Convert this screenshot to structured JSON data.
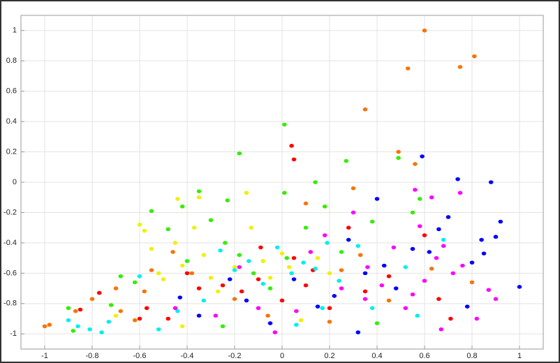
{
  "chart_data": {
    "type": "scatter",
    "xlim": [
      -1.1,
      1.1
    ],
    "ylim": [
      -1.1,
      1.1
    ],
    "xticks": [
      -1,
      -0.8,
      -0.6,
      -0.4,
      -0.2,
      0,
      0.2,
      0.4,
      0.6,
      0.8,
      1
    ],
    "yticks": [
      -1,
      -0.8,
      -0.6,
      -0.4,
      -0.2,
      0,
      0.2,
      0.4,
      0.6,
      0.8,
      1
    ],
    "grid": true,
    "series": [
      {
        "color": "#f97306",
        "x": [
          0.6,
          0.81,
          0.75,
          0.53,
          0.35,
          0.49,
          0.56,
          0.3,
          -1,
          -0.98,
          -0.8,
          -0.87,
          -0.7,
          -0.68,
          -0.55,
          -0.58,
          -0.46,
          -0.38,
          -0.2,
          0.1,
          0.25,
          0.33,
          0.45,
          0.63,
          0.8,
          -0.06,
          0.2,
          -0.62
        ],
        "y": [
          1,
          0.83,
          0.76,
          0.75,
          0.48,
          0.2,
          0.12,
          -0.04,
          -0.95,
          -0.94,
          -0.77,
          -0.85,
          -0.7,
          -0.85,
          -0.58,
          -0.72,
          -0.46,
          -0.6,
          -0.77,
          -0.14,
          -0.58,
          -0.48,
          -0.78,
          -0.57,
          -0.66,
          -0.88,
          -0.92,
          -0.91
        ]
      },
      {
        "color": "#ff0000",
        "x": [
          0.04,
          0.05,
          -0.85,
          -0.77,
          -0.6,
          -0.57,
          -0.48,
          -0.4,
          -0.35,
          -0.25,
          -0.17,
          -0.09,
          0,
          0.05,
          0.1,
          0.13,
          0.2,
          0.28,
          0.35,
          0.45,
          0.6,
          0.66,
          0.71,
          -0.1
        ],
        "y": [
          0.24,
          0.15,
          -0.84,
          -0.73,
          -0.9,
          -0.83,
          -0.9,
          -0.6,
          -0.7,
          -0.68,
          -0.72,
          -0.43,
          -0.78,
          -0.5,
          -0.68,
          -0.58,
          -0.83,
          -0.3,
          -0.72,
          -0.62,
          -0.35,
          -0.77,
          -0.9,
          -0.64
        ]
      },
      {
        "color": "#f0f000",
        "x": [
          -0.44,
          -0.35,
          -0.15,
          -0.6,
          -0.58,
          -0.55,
          -0.52,
          -0.5,
          -0.45,
          -0.42,
          -0.37,
          -0.33,
          -0.3,
          -0.27,
          -0.2,
          -0.13,
          -0.08,
          -0.05,
          0,
          0.03,
          0.08,
          0.15,
          -0.42,
          -0.7,
          0.2
        ],
        "y": [
          -0.11,
          -0.1,
          -0.07,
          -0.28,
          -0.32,
          -0.44,
          -0.6,
          -0.64,
          -0.4,
          -0.55,
          -0.3,
          -0.48,
          -0.63,
          -0.72,
          -0.56,
          -0.3,
          -0.52,
          -0.63,
          -0.47,
          -0.56,
          -0.91,
          -0.5,
          -0.95,
          -0.88,
          -0.6
        ]
      },
      {
        "color": "#33ee00",
        "x": [
          0.01,
          -0.18,
          0.14,
          0.27,
          0.49,
          0.01,
          -0.35,
          -0.55,
          -0.42,
          -0.23,
          -0.68,
          -0.62,
          -0.48,
          -0.4,
          -0.3,
          -0.24,
          -0.18,
          -0.12,
          -0.05,
          0.02,
          0.1,
          0.18,
          0.25,
          0.38,
          0.55,
          0.58,
          -0.9,
          -0.88,
          -0.25,
          0.4,
          -0.72
        ],
        "y": [
          0.38,
          0.19,
          0,
          0.14,
          0.16,
          -0.07,
          -0.06,
          -0.19,
          -0.16,
          -0.12,
          -0.62,
          -0.66,
          -0.31,
          -0.52,
          -0.25,
          -0.4,
          -0.48,
          -0.6,
          -0.7,
          -0.5,
          -0.3,
          -0.16,
          -0.46,
          -0.26,
          -0.2,
          -0.11,
          -0.83,
          -0.98,
          -0.95,
          -0.93,
          -0.81
        ]
      },
      {
        "color": "#00eeee",
        "x": [
          -0.9,
          -0.86,
          -0.81,
          -0.76,
          -0.73,
          -0.6,
          -0.52,
          -0.44,
          -0.33,
          -0.26,
          -0.2,
          -0.14,
          -0.08,
          -0.02,
          0.04,
          0.09,
          0.14,
          0.19,
          0.24,
          0.32,
          0.38,
          0.52,
          0.57,
          0.68,
          0.17,
          0.06
        ],
        "y": [
          -0.91,
          -0.95,
          -0.97,
          -0.99,
          -0.92,
          -0.62,
          -0.97,
          -0.85,
          -0.78,
          -0.45,
          -0.58,
          -0.52,
          -0.67,
          -0.43,
          -0.6,
          -0.53,
          -0.57,
          -0.4,
          -0.65,
          -0.42,
          -0.83,
          -0.56,
          -0.88,
          -0.38,
          -0.83,
          -0.94
        ]
      },
      {
        "color": "#0000ff",
        "x": [
          0.59,
          0.74,
          0.88,
          1,
          0.92,
          0.9,
          0.84,
          0.85,
          0.8,
          0.7,
          0.66,
          0.62,
          0.55,
          0.4,
          0.43,
          0.35,
          0.28,
          0.22,
          0.15,
          0.05,
          -0.05,
          -0.15,
          -0.22,
          -0.35,
          -0.43,
          0.48,
          0.32,
          0.78
        ],
        "y": [
          0.17,
          0.02,
          0,
          -0.69,
          -0.26,
          -0.36,
          -0.38,
          -0.47,
          -0.53,
          -0.23,
          -0.31,
          -0.46,
          -0.44,
          -0.11,
          -0.55,
          -0.6,
          -0.38,
          -0.75,
          -0.82,
          -0.64,
          -0.93,
          -0.78,
          -0.64,
          -0.88,
          -0.76,
          -0.7,
          -0.99,
          -0.82
        ]
      },
      {
        "color": "#ff00ff",
        "x": [
          0.56,
          0.63,
          0.75,
          0.58,
          0.68,
          0.72,
          0.76,
          0.87,
          0.9,
          0.65,
          0.6,
          0.55,
          0.52,
          0.47,
          0.42,
          0.36,
          0.3,
          0.25,
          0.18,
          0.12,
          0.06,
          -0.03,
          -0.1,
          -0.18,
          -0.28,
          -0.45,
          0.67,
          0.82,
          0.35
        ],
        "y": [
          -0.05,
          -0.1,
          -0.07,
          -0.29,
          -0.42,
          -0.6,
          -0.55,
          -0.71,
          -0.77,
          -0.5,
          -0.65,
          -0.74,
          -0.83,
          -0.43,
          -0.68,
          -0.56,
          -0.2,
          -0.7,
          -0.35,
          -0.46,
          -0.85,
          -0.99,
          -0.83,
          -0.56,
          -0.88,
          -0.83,
          -0.97,
          -0.9,
          -0.77
        ]
      }
    ]
  }
}
